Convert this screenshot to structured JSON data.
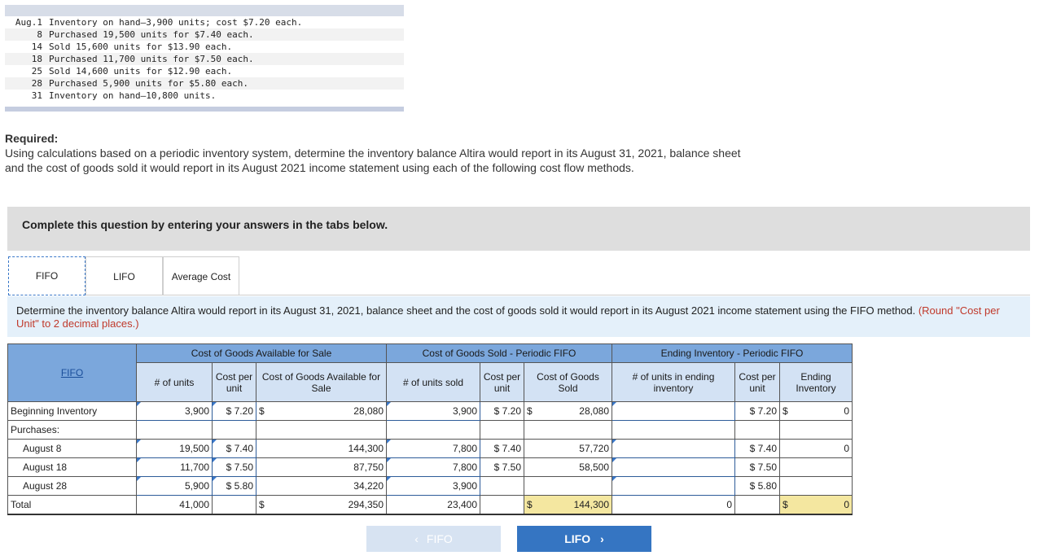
{
  "problem_lines": [
    {
      "day": "Aug.1",
      "text": "Inventory on hand—3,900 units; cost $7.20 each."
    },
    {
      "day": "8",
      "text": "Purchased 19,500 units for $7.40 each."
    },
    {
      "day": "14",
      "text": "Sold 15,600 units for $13.90 each."
    },
    {
      "day": "18",
      "text": "Purchased 11,700 units for $7.50 each."
    },
    {
      "day": "25",
      "text": "Sold 14,600 units for $12.90 each."
    },
    {
      "day": "28",
      "text": "Purchased 5,900 units for $5.80 each."
    },
    {
      "day": "31",
      "text": "Inventory on hand—10,800 units."
    }
  ],
  "required": {
    "title": "Required:",
    "text": "Using calculations based on a periodic inventory system, determine the inventory balance Altira would report in its August 31, 2021, balance sheet and the cost of goods sold it would report in its August 2021 income statement using each of the following cost flow methods."
  },
  "panel_text": "Complete this question by entering your answers in the tabs below.",
  "tabs": [
    "FIFO",
    "LIFO",
    "Average Cost"
  ],
  "instruction": {
    "text": "Determine the inventory balance Altira would report in its August 31, 2021, balance sheet and the cost of goods sold it would report in its August 2021 income statement using the FIFO method.",
    "note": "(Round \"Cost per Unit\" to 2 decimal places.)"
  },
  "table": {
    "corner": "FIFO",
    "groups": [
      "Cost of Goods Available for Sale",
      "Cost of Goods Sold - Periodic FIFO",
      "Ending Inventory - Periodic FIFO"
    ],
    "cols": {
      "units": "# of units",
      "cost_per_unit": "Cost per unit",
      "cogas": "Cost of Goods Available for Sale",
      "units_sold": "# of units sold",
      "cogs": "Cost of Goods Sold",
      "units_ending": "# of units in ending inventory",
      "ending_inventory": "Ending Inventory"
    },
    "rows": {
      "beginning": {
        "label": "Beginning Inventory",
        "units": "3,900",
        "cpu": "$ 7.20",
        "sym": "$",
        "cogas": "28,080",
        "sold": "3,900",
        "sold_cpu": "$ 7.20",
        "sold_sym": "$",
        "cogs": "28,080",
        "end_units": "",
        "end_cpu": "$ 7.20",
        "end_sym": "$",
        "end_inv": "0"
      },
      "purchases_label": "Purchases:",
      "aug8": {
        "label": "August 8",
        "units": "19,500",
        "cpu": "$ 7.40",
        "cogas": "144,300",
        "sold": "7,800",
        "sold_cpu": "$ 7.40",
        "cogs": "57,720",
        "end_units": "",
        "end_cpu": "$ 7.40",
        "end_inv": "0"
      },
      "aug18": {
        "label": "August 18",
        "units": "11,700",
        "cpu": "$ 7.50",
        "cogas": "87,750",
        "sold": "7,800",
        "sold_cpu": "$ 7.50",
        "cogs": "58,500",
        "end_units": "",
        "end_cpu": "$ 7.50",
        "end_inv": ""
      },
      "aug28": {
        "label": "August 28",
        "units": "5,900",
        "cpu": "$ 5.80",
        "cogas": "34,220",
        "sold": "3,900",
        "sold_cpu": "",
        "cogs": "",
        "end_units": "",
        "end_cpu": "$ 5.80",
        "end_inv": ""
      },
      "total": {
        "label": "Total",
        "units": "41,000",
        "sym": "$",
        "cogas": "294,350",
        "sold": "23,400",
        "cogs_sym": "$",
        "cogs": "144,300",
        "end_units": "0",
        "end_sym": "$",
        "end_inv": "0"
      }
    }
  },
  "nav": {
    "prev": "FIFO",
    "next": "LIFO"
  }
}
